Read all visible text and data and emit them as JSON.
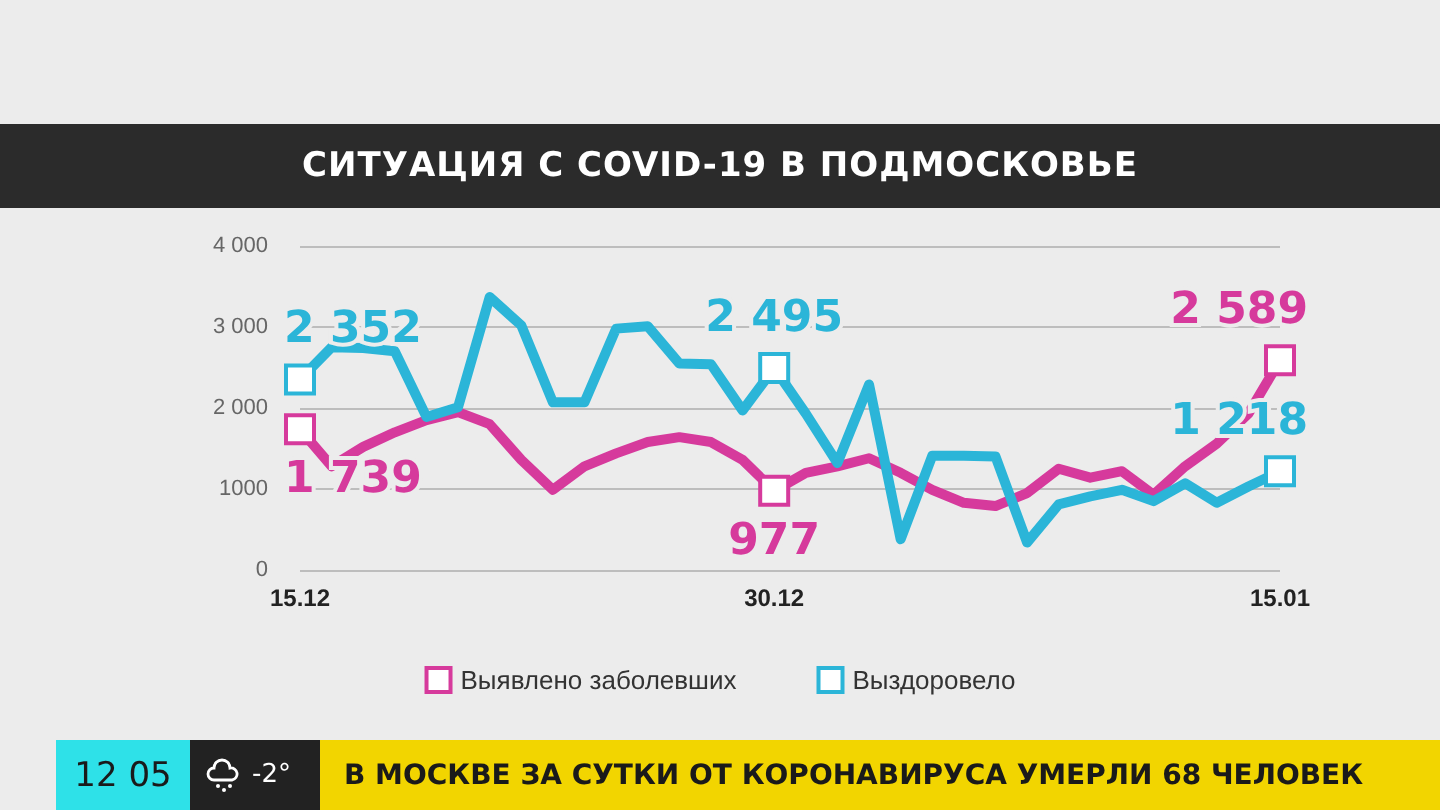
{
  "chart_data": {
    "type": "line",
    "title": "СИТУАЦИЯ С COVID-19 В ПОДМОСКОВЬЕ",
    "categories": [
      "15.12",
      null,
      null,
      null,
      null,
      null,
      null,
      null,
      null,
      null,
      null,
      null,
      null,
      null,
      null,
      "30.12",
      null,
      null,
      null,
      null,
      null,
      null,
      null,
      null,
      null,
      null,
      null,
      null,
      null,
      null,
      null,
      "15.01"
    ],
    "series": [
      {
        "name": "Выявлено заболевших",
        "color": "#d63a9c",
        "values": [
          1739,
          1280,
          1520,
          1700,
          1850,
          1950,
          1800,
          1360,
          990,
          1280,
          1440,
          1580,
          1640,
          1580,
          1360,
          977,
          1200,
          1280,
          1380,
          1200,
          990,
          830,
          790,
          950,
          1250,
          1140,
          1220,
          930,
          1280,
          1560,
          1930,
          2589
        ],
        "value_labels": [
          "1 739",
          null,
          null,
          null,
          null,
          null,
          null,
          null,
          null,
          null,
          null,
          null,
          null,
          null,
          null,
          "977",
          null,
          null,
          null,
          null,
          null,
          null,
          null,
          null,
          null,
          null,
          null,
          null,
          null,
          null,
          null,
          "2 589"
        ]
      },
      {
        "name": "Выздоровело",
        "color": "#2bb5d8",
        "values": [
          2352,
          2750,
          2740,
          2700,
          1890,
          2010,
          3370,
          3020,
          2070,
          2070,
          2980,
          3010,
          2550,
          2540,
          1970,
          2495,
          1930,
          1320,
          2290,
          380,
          1410,
          1410,
          1400,
          340,
          810,
          910,
          990,
          850,
          1070,
          830,
          1030,
          1218
        ],
        "value_labels": [
          "2 352",
          null,
          null,
          null,
          null,
          null,
          null,
          null,
          null,
          null,
          null,
          null,
          null,
          null,
          null,
          "2 495",
          null,
          null,
          null,
          null,
          null,
          null,
          null,
          null,
          null,
          null,
          null,
          null,
          null,
          null,
          null,
          "1 218"
        ]
      }
    ],
    "ylim": [
      0,
      4000
    ],
    "yticks": [
      0,
      {
        "value": 1000,
        "label": "1000"
      },
      {
        "value": 2000,
        "label": "2 000"
      },
      {
        "value": 3000,
        "label": "3 000"
      },
      {
        "value": 4000,
        "label": "4 000"
      }
    ],
    "grid": "y",
    "legend": "bottom",
    "line_style": "solid",
    "annotations": [
      "12 05",
      "-2°",
      "В МОСКВЕ ЗА СУТКИ ОТ КОРОНАВИРУСА УМЕРЛИ 68 ЧЕЛОВЕК"
    ]
  }
}
